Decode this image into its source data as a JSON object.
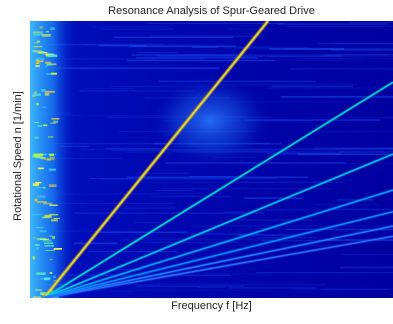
{
  "chart_data": {
    "type": "heatmap",
    "title": "Resonance Analysis of Spur-Geared Drive",
    "xlabel": "Frequency f [Hz]",
    "ylabel": "Rotational Speed n [1/min]",
    "x_tick_labels": [],
    "y_tick_labels": [],
    "colormap": "jet",
    "background_color": "#0000a8",
    "order_lines": [
      {
        "order": 1,
        "color": "#c8e640"
      },
      {
        "order": 2,
        "color": "#00e0d0"
      },
      {
        "order": 3,
        "color": "#00c8f0"
      },
      {
        "order": 4,
        "color": "#00a8ff"
      },
      {
        "order": 5,
        "color": "#0090ff"
      },
      {
        "order": 6,
        "color": "#2080ff"
      },
      {
        "order": 7,
        "color": "#2a70ff"
      }
    ],
    "features": [
      "vertical resonance band at low frequency",
      "diffuse energy around first order line"
    ]
  }
}
